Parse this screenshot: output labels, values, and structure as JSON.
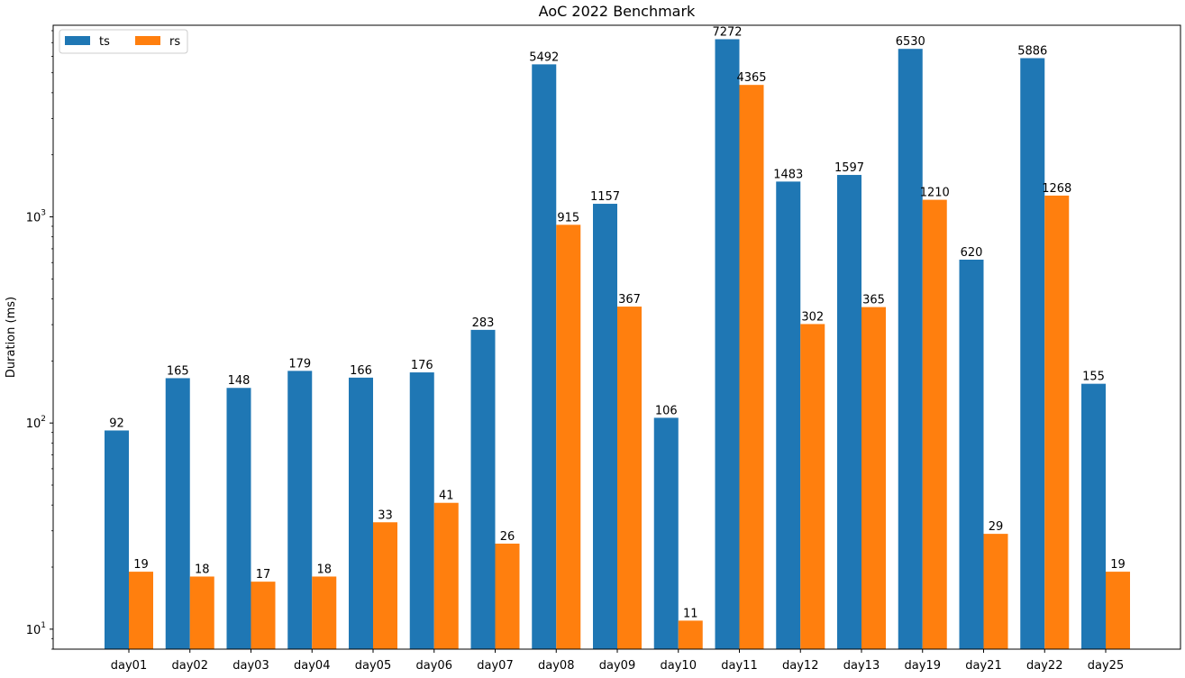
{
  "chart_data": {
    "type": "bar",
    "title": "AoC 2022 Benchmark",
    "xlabel": "",
    "ylabel": "Duration (ms)",
    "yscale": "log",
    "ylim": [
      8,
      8500
    ],
    "yticks": [
      {
        "value": 10,
        "base": "10",
        "exp": "1"
      },
      {
        "value": 100,
        "base": "10",
        "exp": "2"
      },
      {
        "value": 1000,
        "base": "10",
        "exp": "3"
      }
    ],
    "legend": "top-left",
    "grid": false,
    "categories": [
      "day01",
      "day02",
      "day03",
      "day04",
      "day05",
      "day06",
      "day07",
      "day08",
      "day09",
      "day10",
      "day11",
      "day12",
      "day13",
      "day19",
      "day21",
      "day22",
      "day25"
    ],
    "series": [
      {
        "name": "ts",
        "color": "#1f77b4",
        "values": [
          92,
          165,
          148,
          179,
          166,
          176,
          283,
          5492,
          1157,
          106,
          7272,
          1483,
          1597,
          6530,
          620,
          5886,
          155
        ]
      },
      {
        "name": "rs",
        "color": "#ff7f0e",
        "values": [
          19,
          18,
          17,
          18,
          33,
          41,
          26,
          915,
          367,
          11,
          4365,
          302,
          365,
          1210,
          29,
          1268,
          19
        ]
      }
    ]
  }
}
